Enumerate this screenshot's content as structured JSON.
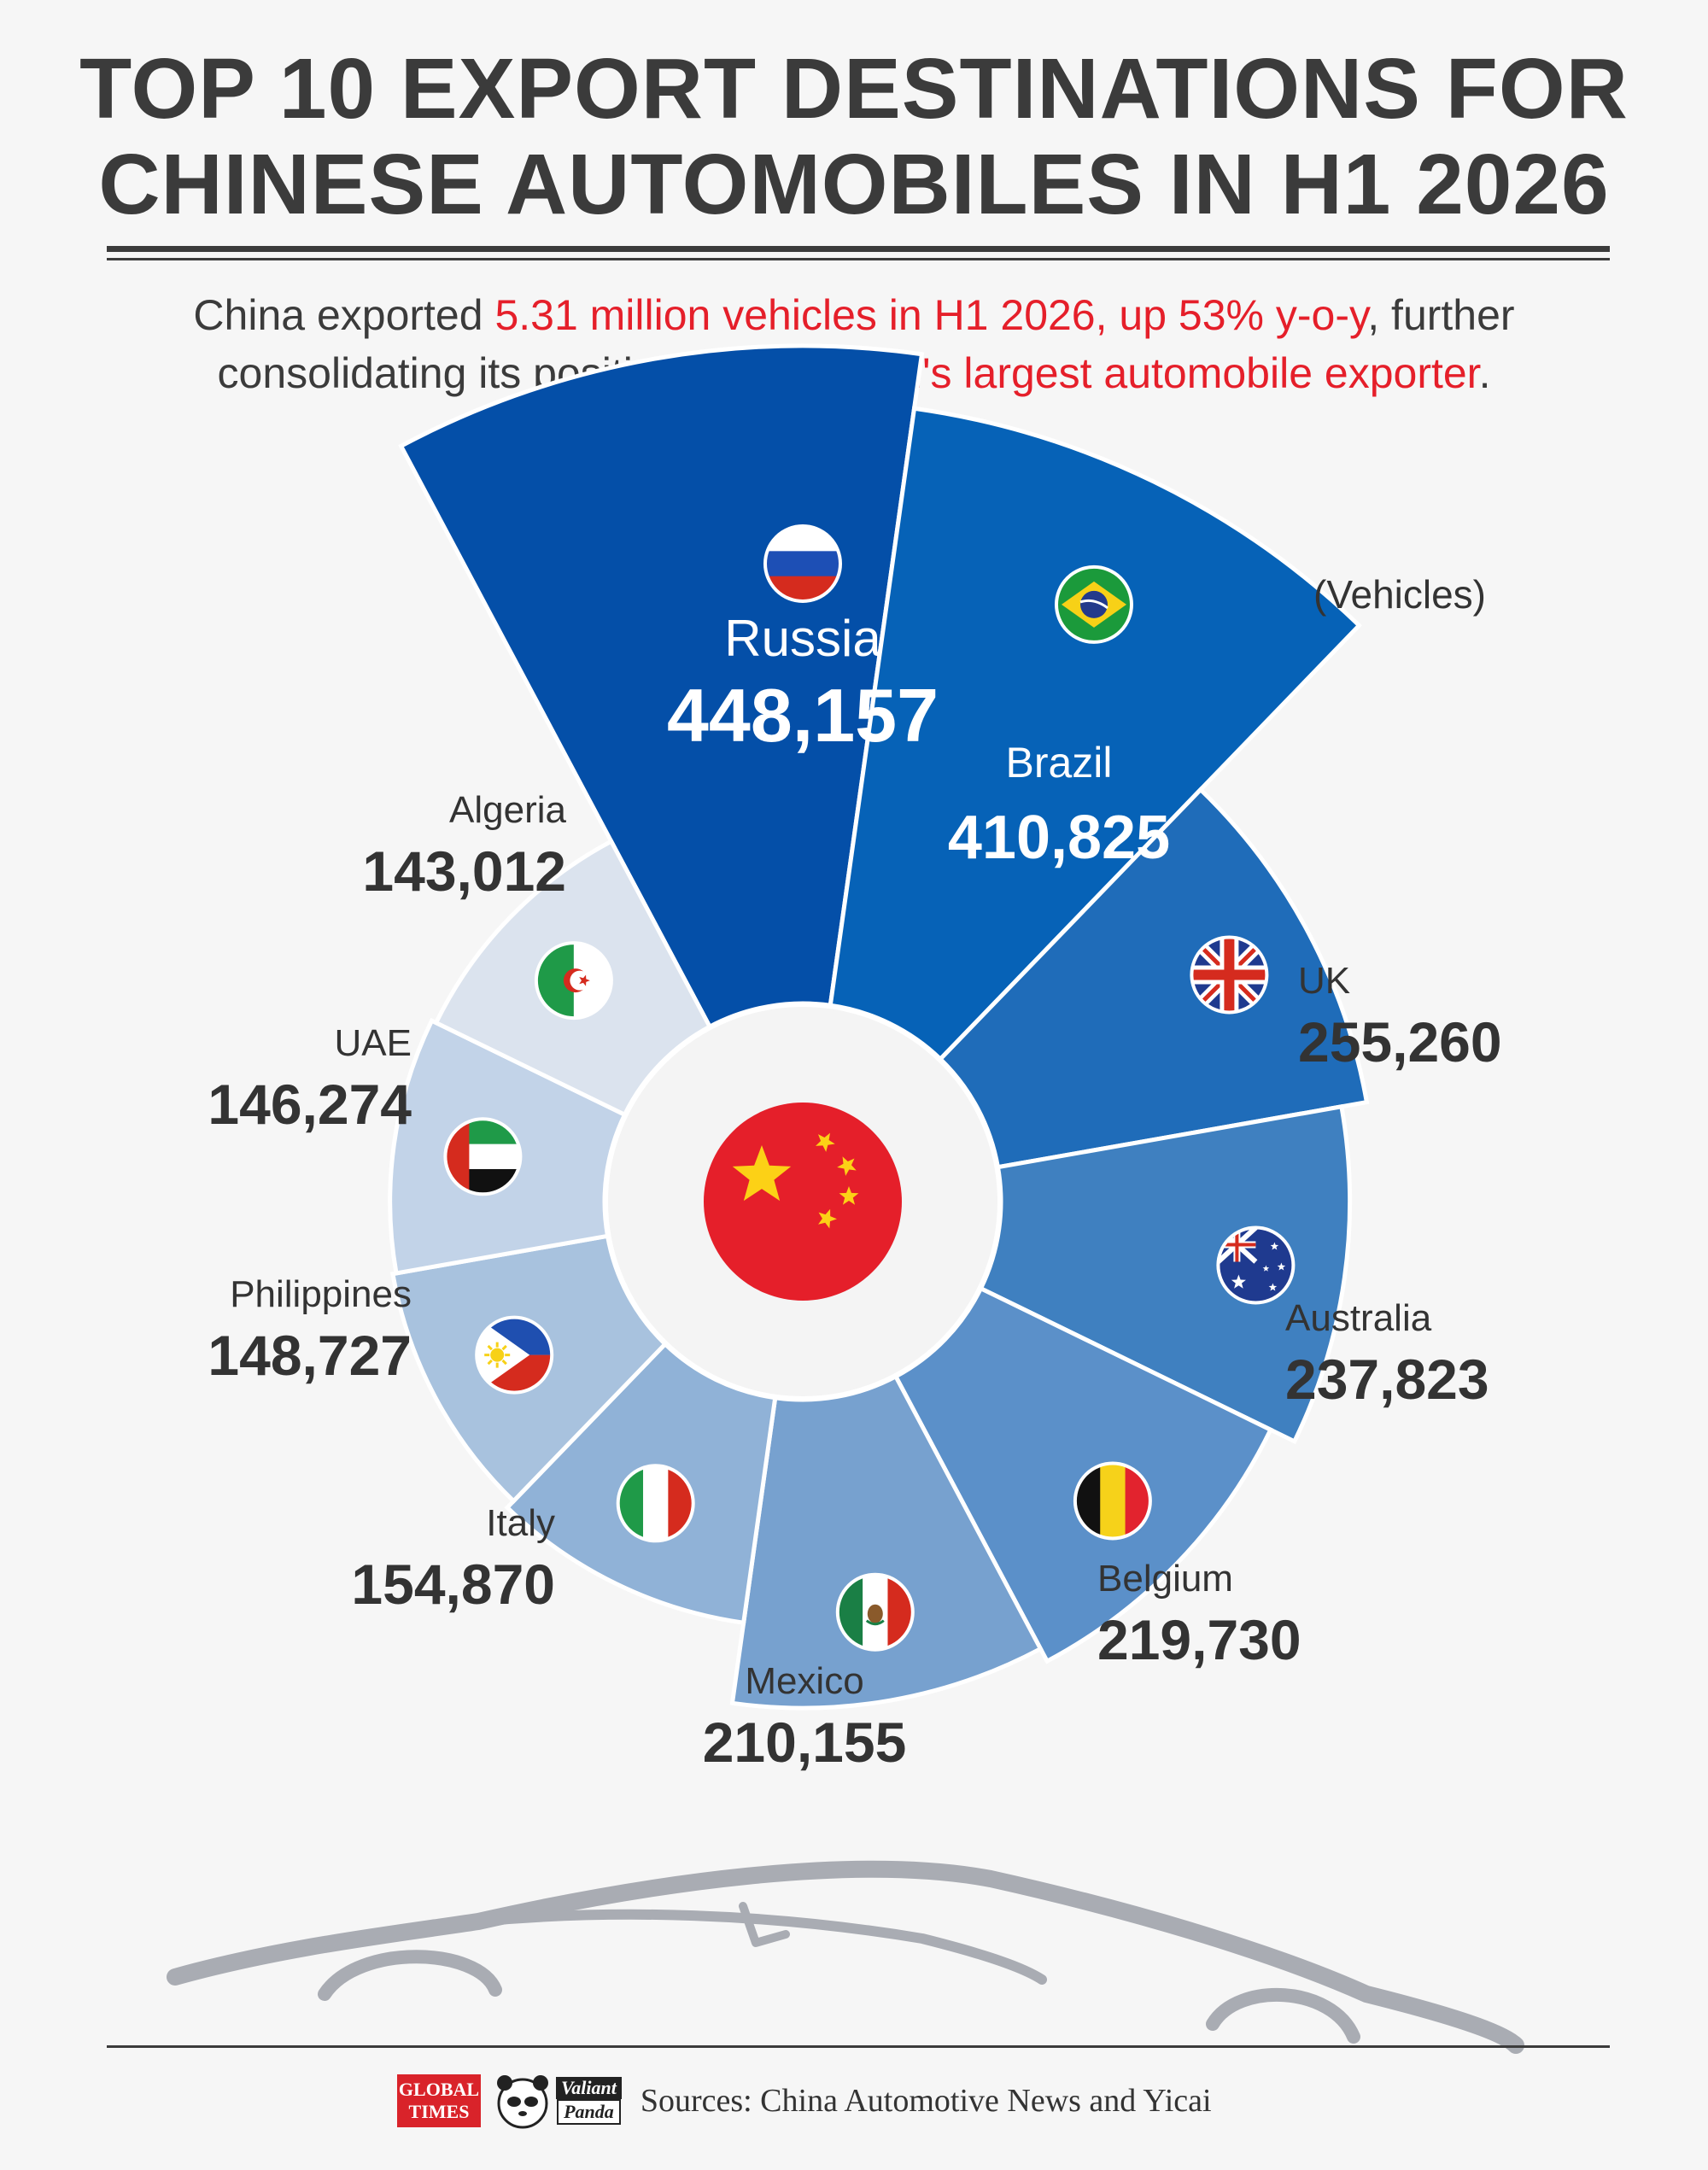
{
  "title_line1": "TOP 10 EXPORT DESTINATIONS FOR",
  "title_line2": "CHINESE AUTOMOBILES IN H1 2026",
  "subtitle": {
    "s1": "China exported ",
    "s2": "5.31 million vehicles in H1 2026, up 53% y-o-y",
    "s3": ", further",
    "s4": "consolidating its position as the ",
    "s5": "world's largest automobile exporter",
    "s6": "."
  },
  "unit_label": "(Vehicles)",
  "source": "Sources: China Automotive News and Yicai",
  "logos": {
    "global_times_line1": "GLOBAL",
    "global_times_line2": "TIMES",
    "valiant": "Valiant",
    "panda": "Panda"
  },
  "colors": {
    "accent_red": "#e51f2a",
    "title_gray": "#3b3b3b"
  },
  "chart_data": {
    "type": "pie",
    "subtype": "radial-bar (nightingale rose)",
    "unit": "(Vehicles)",
    "categories": [
      "Russia",
      "Brazil",
      "UK",
      "Australia",
      "Belgium",
      "Mexico",
      "Italy",
      "Philippines",
      "UAE",
      "Algeria"
    ],
    "values": [
      448157,
      410825,
      255260,
      237823,
      219730,
      210155,
      154870,
      148727,
      146274,
      143012
    ],
    "center_icon": "china-flag-icon",
    "segment_colors": [
      "#044fa8",
      "#0662b7",
      "#1f6cb9",
      "#3f80c0",
      "#5b90c9",
      "#77a1cf",
      "#90b2d7",
      "#a8c2de",
      "#c2d3e8",
      "#dbe3ee"
    ],
    "flag_icons": [
      "russia-flag-icon",
      "brazil-flag-icon",
      "uk-flag-icon",
      "australia-flag-icon",
      "belgium-flag-icon",
      "mexico-flag-icon",
      "italy-flag-icon",
      "philippines-flag-icon",
      "uae-flag-icon",
      "algeria-flag-icon"
    ]
  }
}
